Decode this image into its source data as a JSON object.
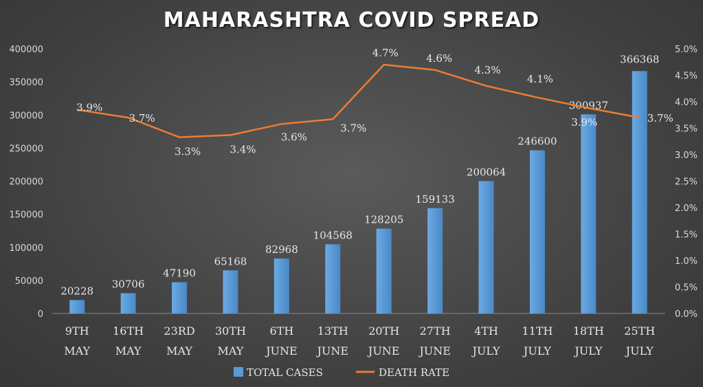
{
  "chart_data": {
    "type": "bar",
    "title": "MAHARASHTRA COVID SPREAD",
    "categories": [
      [
        "9TH",
        "MAY"
      ],
      [
        "16TH",
        "MAY"
      ],
      [
        "23RD",
        "MAY"
      ],
      [
        "30TH",
        "MAY"
      ],
      [
        "6TH",
        "JUNE"
      ],
      [
        "13TH",
        "JUNE"
      ],
      [
        "20TH",
        "JUNE"
      ],
      [
        "27TH",
        "JUNE"
      ],
      [
        "4TH",
        "JULY"
      ],
      [
        "11TH",
        "JULY"
      ],
      [
        "18TH",
        "JULY"
      ],
      [
        "25TH",
        "JULY"
      ]
    ],
    "series": [
      {
        "name": "TOTAL CASES",
        "type": "bar",
        "axis": "left",
        "values": [
          20228,
          30706,
          47190,
          65168,
          82968,
          104568,
          128205,
          159133,
          200064,
          246600,
          300937,
          366368
        ]
      },
      {
        "name": "DEATH RATE",
        "type": "line",
        "axis": "right",
        "values": [
          3.85,
          3.7,
          3.33,
          3.37,
          3.58,
          3.67,
          4.7,
          4.6,
          4.3,
          4.08,
          3.88,
          3.7
        ],
        "labels": [
          "3.9%",
          "3.7%",
          "3.3%",
          "3.4%",
          "3.6%",
          "3.7%",
          "4.7%",
          "4.6%",
          "4.3%",
          "4.1%",
          "3.9%",
          "3.7%"
        ]
      }
    ],
    "y_left": {
      "ylim": [
        0,
        400000
      ],
      "ticks": [
        0,
        50000,
        100000,
        150000,
        200000,
        250000,
        300000,
        350000,
        400000
      ],
      "tick_labels": [
        "0",
        "50000",
        "100000",
        "150000",
        "200000",
        "250000",
        "300000",
        "350000",
        "400000"
      ]
    },
    "y_right": {
      "ylim": [
        0,
        5
      ],
      "ticks": [
        0,
        0.5,
        1,
        1.5,
        2,
        2.5,
        3,
        3.5,
        4,
        4.5,
        5
      ],
      "tick_labels": [
        "0.0%",
        "0.5%",
        "1.0%",
        "1.5%",
        "2.0%",
        "2.5%",
        "3.0%",
        "3.5%",
        "4.0%",
        "4.5%",
        "5.0%"
      ]
    },
    "grid": false,
    "legend": "bottom",
    "colors": {
      "bar": "#5b9bd5",
      "line": "#ed7d31"
    }
  }
}
